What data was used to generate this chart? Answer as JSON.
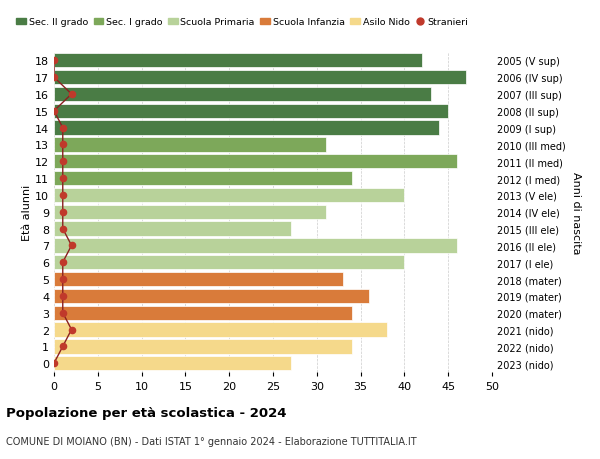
{
  "ages": [
    18,
    17,
    16,
    15,
    14,
    13,
    12,
    11,
    10,
    9,
    8,
    7,
    6,
    5,
    4,
    3,
    2,
    1,
    0
  ],
  "right_labels": [
    "2005 (V sup)",
    "2006 (IV sup)",
    "2007 (III sup)",
    "2008 (II sup)",
    "2009 (I sup)",
    "2010 (III med)",
    "2011 (II med)",
    "2012 (I med)",
    "2013 (V ele)",
    "2014 (IV ele)",
    "2015 (III ele)",
    "2016 (II ele)",
    "2017 (I ele)",
    "2018 (mater)",
    "2019 (mater)",
    "2020 (mater)",
    "2021 (nido)",
    "2022 (nido)",
    "2023 (nido)"
  ],
  "bar_values": [
    42,
    47,
    43,
    45,
    44,
    31,
    46,
    34,
    40,
    31,
    27,
    46,
    40,
    33,
    36,
    34,
    38,
    34,
    27
  ],
  "stranieri": [
    0,
    0,
    2,
    0,
    1,
    1,
    1,
    1,
    1,
    1,
    1,
    2,
    1,
    1,
    1,
    1,
    2,
    1,
    0
  ],
  "bar_colors": [
    "#4a7c45",
    "#4a7c45",
    "#4a7c45",
    "#4a7c45",
    "#4a7c45",
    "#7da85a",
    "#7da85a",
    "#7da85a",
    "#b8d29a",
    "#b8d29a",
    "#b8d29a",
    "#b8d29a",
    "#b8d29a",
    "#d97b3a",
    "#d97b3a",
    "#d97b3a",
    "#f5d98b",
    "#f5d98b",
    "#f5d98b"
  ],
  "legend_labels": [
    "Sec. II grado",
    "Sec. I grado",
    "Scuola Primaria",
    "Scuola Infanzia",
    "Asilo Nido",
    "Stranieri"
  ],
  "legend_colors": [
    "#4a7c45",
    "#7da85a",
    "#b8d29a",
    "#d97b3a",
    "#f5d98b",
    "#c0392b"
  ],
  "stranieri_color": "#c0392b",
  "stranieri_line_color": "#8b2020",
  "title_bold": "Popolazione per età scolastica - 2024",
  "subtitle": "COMUNE DI MOIANO (BN) - Dati ISTAT 1° gennaio 2024 - Elaborazione TUTTITALIA.IT",
  "ylabel": "Età alunni",
  "right_ylabel": "Anni di nascita",
  "xlim": [
    0,
    50
  ],
  "xticks": [
    0,
    5,
    10,
    15,
    20,
    25,
    30,
    35,
    40,
    45,
    50
  ],
  "background_color": "#ffffff",
  "grid_color": "#cccccc"
}
